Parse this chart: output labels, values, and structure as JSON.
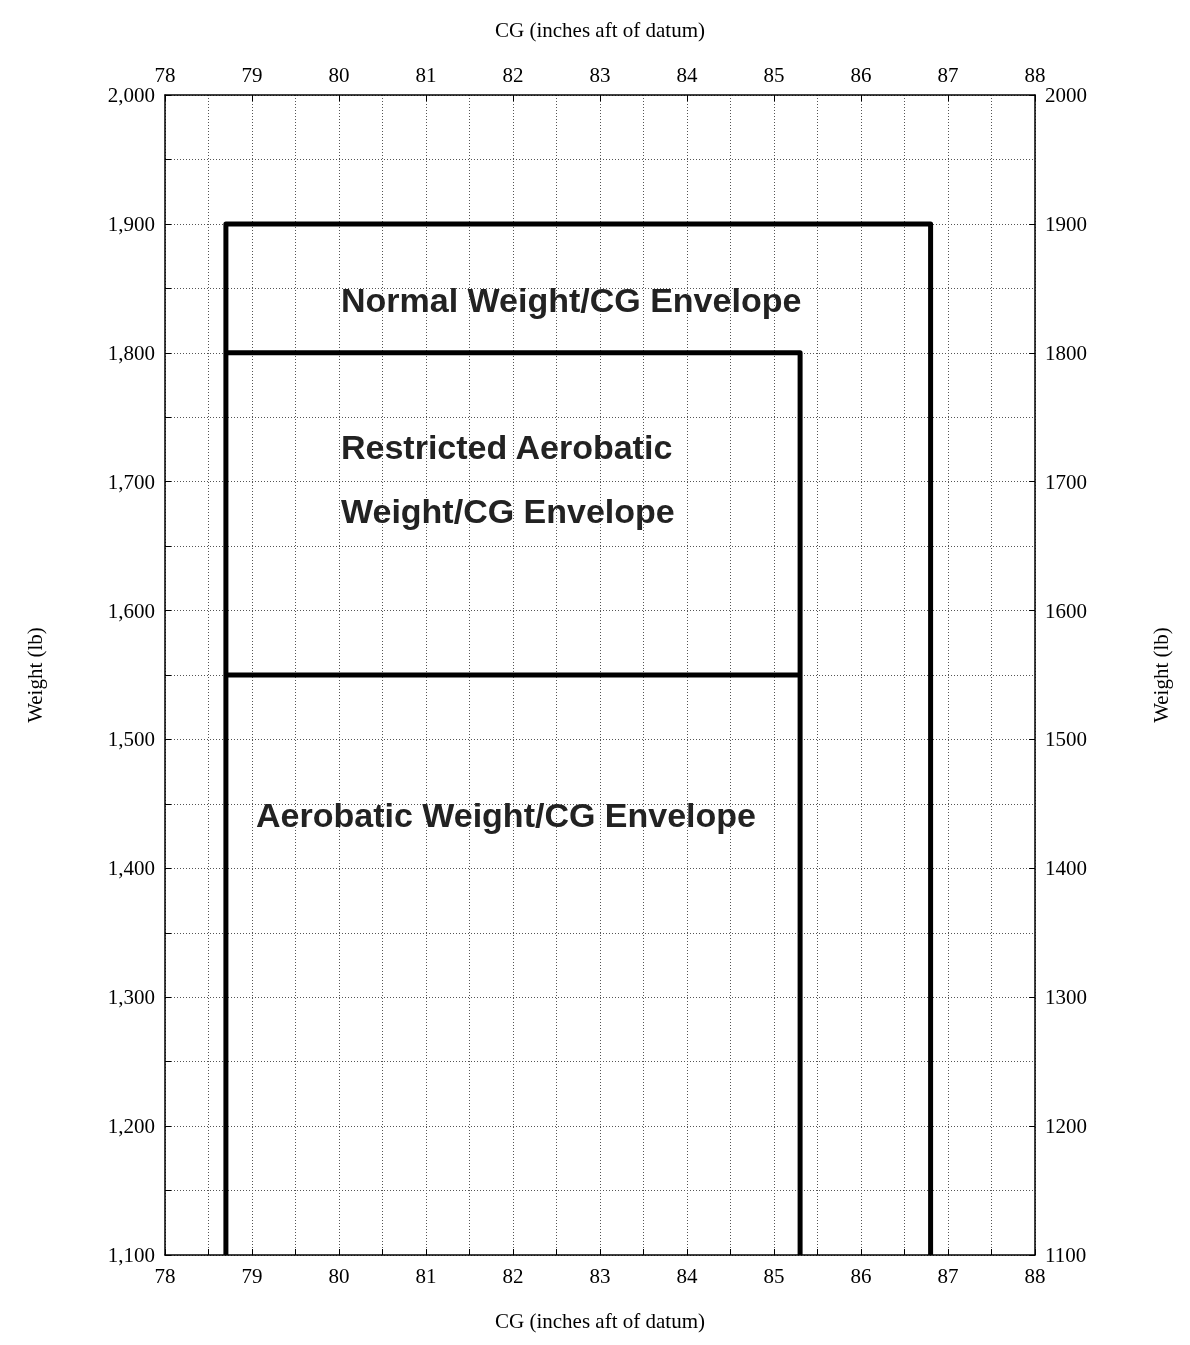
{
  "chart_data": {
    "type": "line",
    "xlabel": "CG (inches aft of datum)",
    "x2label": "CG (inches aft of datum)",
    "ylabel": "Weight (lb)",
    "y2label": "Weight (lb)",
    "series": [
      {
        "color": "#000000",
        "x": [
          78.7,
          78.7,
          86.8,
          86.8
        ],
        "values": [
          1100,
          1900,
          1900,
          1100
        ]
      },
      {
        "color": "#000000",
        "x": [
          78.7,
          85.3,
          85.3
        ],
        "values": [
          1800,
          1800,
          1100
        ]
      },
      {
        "color": "#000000",
        "x": [
          78.7,
          85.3
        ],
        "values": [
          1550,
          1550
        ]
      }
    ],
    "annotations": [
      "Normal Weight/CG Envelope",
      "Restricted Aerobatic\nWeight/CG Envelope",
      "Aerobatic Weight/CG Envelope"
    ],
    "xlim": [
      78,
      88
    ],
    "x2lim": [
      78,
      88
    ],
    "xticks": [
      78,
      {
        "value": 78.5,
        "label": null
      },
      79,
      {
        "value": 79.5,
        "label": null
      },
      80,
      {
        "value": 80.5,
        "label": null
      },
      81,
      {
        "value": 81.5,
        "label": null
      },
      82,
      {
        "value": 82.5,
        "label": null
      },
      83,
      {
        "value": 83.5,
        "label": null
      },
      84,
      {
        "value": 84.5,
        "label": null
      },
      85,
      {
        "value": 85.5,
        "label": null
      },
      86,
      {
        "value": 86.5,
        "label": null
      },
      87,
      {
        "value": 87.5,
        "label": null
      },
      88
    ],
    "x2ticks": [
      78,
      79,
      80,
      81,
      82,
      83,
      84,
      85,
      86,
      87,
      88
    ],
    "ylim": [
      1100,
      2000
    ],
    "yticks": [
      {
        "value": 1100,
        "label": "1,100"
      },
      {
        "value": 1150,
        "label": null
      },
      {
        "value": 1200,
        "label": "1,200"
      },
      {
        "value": 1250,
        "label": null
      },
      {
        "value": 1300,
        "label": "1,300"
      },
      {
        "value": 1350,
        "label": null
      },
      {
        "value": 1400,
        "label": "1,400"
      },
      {
        "value": 1450,
        "label": null
      },
      {
        "value": 1500,
        "label": "1,500"
      },
      {
        "value": 1550,
        "label": null
      },
      {
        "value": 1600,
        "label": "1,600"
      },
      {
        "value": 1650,
        "label": null
      },
      {
        "value": 1700,
        "label": "1,700"
      },
      {
        "value": 1750,
        "label": null
      },
      {
        "value": 1800,
        "label": "1,800"
      },
      {
        "value": 1850,
        "label": null
      },
      {
        "value": 1900,
        "label": "1,900"
      },
      {
        "value": 1950,
        "label": null
      },
      {
        "value": 2000,
        "label": "2,000"
      }
    ],
    "y2lim": [
      1100,
      2000
    ],
    "y2ticks": [
      1100,
      1200,
      1300,
      1400,
      1500,
      1600,
      1700,
      1800,
      1900,
      2000
    ],
    "grid": true,
    "marker": "none",
    "line_style": "solid"
  }
}
